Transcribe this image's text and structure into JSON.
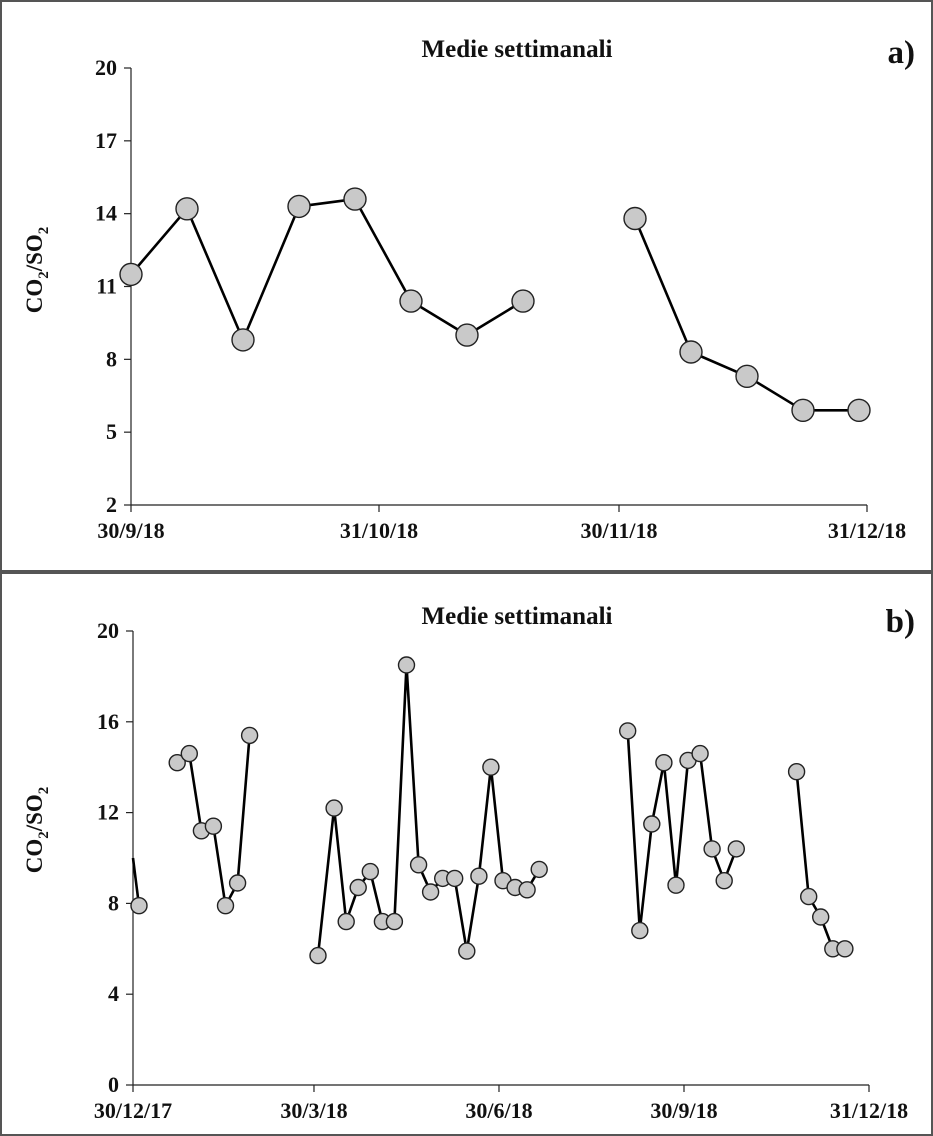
{
  "chart_data": [
    {
      "type": "line",
      "panel": "a)",
      "title": "Medie settimanali",
      "ylabel_main": "CO",
      "ylabel_sub1": "2",
      "ylabel_mid": "/SO",
      "ylabel_sub2": "2",
      "ylim": [
        2,
        20
      ],
      "yticks": [
        2,
        5,
        8,
        11,
        14,
        17,
        20
      ],
      "xlim": [
        "2018-09-30",
        "2018-12-31"
      ],
      "xticks": [
        "30/9/18",
        "31/10/18",
        "30/11/18",
        "31/12/18"
      ],
      "xtick_dates": [
        "2018-09-30",
        "2018-10-31",
        "2018-11-30",
        "2018-12-31"
      ],
      "grid": false,
      "series": [
        {
          "marker_color": "#c9c9c9",
          "line_color": "#000000",
          "segments": [
            [
              {
                "x": "2018-09-30",
                "y": 11.5
              },
              {
                "x": "2018-10-07",
                "y": 14.2
              },
              {
                "x": "2018-10-14",
                "y": 8.8
              },
              {
                "x": "2018-10-21",
                "y": 14.3
              },
              {
                "x": "2018-10-28",
                "y": 14.6
              },
              {
                "x": "2018-11-04",
                "y": 10.4
              },
              {
                "x": "2018-11-11",
                "y": 9.0
              },
              {
                "x": "2018-11-18",
                "y": 10.4
              }
            ],
            [
              {
                "x": "2018-12-02",
                "y": 13.8
              },
              {
                "x": "2018-12-09",
                "y": 8.3
              },
              {
                "x": "2018-12-16",
                "y": 7.3
              },
              {
                "x": "2018-12-23",
                "y": 5.9
              },
              {
                "x": "2018-12-30",
                "y": 5.9
              }
            ]
          ]
        }
      ]
    },
    {
      "type": "line",
      "panel": "b)",
      "title": "Medie settimanali",
      "ylabel_main": "CO",
      "ylabel_sub1": "2",
      "ylabel_mid": "/SO",
      "ylabel_sub2": "2",
      "ylim": [
        0,
        20
      ],
      "yticks": [
        0,
        4,
        8,
        12,
        16,
        20
      ],
      "xlim": [
        "2017-12-30",
        "2018-12-31"
      ],
      "xticks": [
        "30/12/17",
        "30/3/18",
        "30/6/18",
        "30/9/18",
        "31/12/18"
      ],
      "xtick_dates": [
        "2017-12-30",
        "2018-03-30",
        "2018-06-30",
        "2018-09-30",
        "2018-12-31"
      ],
      "grid": false,
      "series": [
        {
          "marker_color": "#c9c9c9",
          "line_color": "#000000",
          "segments": [
            [
              {
                "x": "2017-12-30",
                "y": 10.0,
                "marker": false
              },
              {
                "x": "2018-01-02",
                "y": 7.9
              }
            ],
            [
              {
                "x": "2018-01-21",
                "y": 14.2
              },
              {
                "x": "2018-01-27",
                "y": 14.6
              },
              {
                "x": "2018-02-02",
                "y": 11.2
              },
              {
                "x": "2018-02-08",
                "y": 11.4
              },
              {
                "x": "2018-02-14",
                "y": 7.9
              },
              {
                "x": "2018-02-20",
                "y": 8.9
              },
              {
                "x": "2018-02-26",
                "y": 15.4
              }
            ],
            [
              {
                "x": "2018-04-01",
                "y": 5.7
              },
              {
                "x": "2018-04-09",
                "y": 12.2
              },
              {
                "x": "2018-04-15",
                "y": 7.2
              },
              {
                "x": "2018-04-21",
                "y": 8.7
              },
              {
                "x": "2018-04-27",
                "y": 9.4
              },
              {
                "x": "2018-05-03",
                "y": 7.2
              },
              {
                "x": "2018-05-09",
                "y": 7.2
              },
              {
                "x": "2018-05-15",
                "y": 18.5
              },
              {
                "x": "2018-05-21",
                "y": 9.7
              },
              {
                "x": "2018-05-27",
                "y": 8.5
              },
              {
                "x": "2018-06-02",
                "y": 9.1
              },
              {
                "x": "2018-06-08",
                "y": 9.1
              },
              {
                "x": "2018-06-14",
                "y": 5.9
              },
              {
                "x": "2018-06-20",
                "y": 9.2
              },
              {
                "x": "2018-06-26",
                "y": 14.0
              },
              {
                "x": "2018-07-02",
                "y": 9.0
              },
              {
                "x": "2018-07-08",
                "y": 8.7
              },
              {
                "x": "2018-07-14",
                "y": 8.6
              },
              {
                "x": "2018-07-20",
                "y": 9.5
              }
            ],
            [
              {
                "x": "2018-09-02",
                "y": 15.6
              },
              {
                "x": "2018-09-08",
                "y": 6.8
              },
              {
                "x": "2018-09-14",
                "y": 11.5
              },
              {
                "x": "2018-09-20",
                "y": 14.2
              },
              {
                "x": "2018-09-26",
                "y": 8.8
              },
              {
                "x": "2018-10-02",
                "y": 14.3
              },
              {
                "x": "2018-10-08",
                "y": 14.6
              },
              {
                "x": "2018-10-14",
                "y": 10.4
              },
              {
                "x": "2018-10-20",
                "y": 9.0
              },
              {
                "x": "2018-10-26",
                "y": 10.4
              }
            ],
            [
              {
                "x": "2018-11-25",
                "y": 13.8
              },
              {
                "x": "2018-12-01",
                "y": 8.3
              },
              {
                "x": "2018-12-07",
                "y": 7.4
              },
              {
                "x": "2018-12-13",
                "y": 6.0
              },
              {
                "x": "2018-12-19",
                "y": 6.0
              }
            ]
          ]
        }
      ]
    }
  ]
}
